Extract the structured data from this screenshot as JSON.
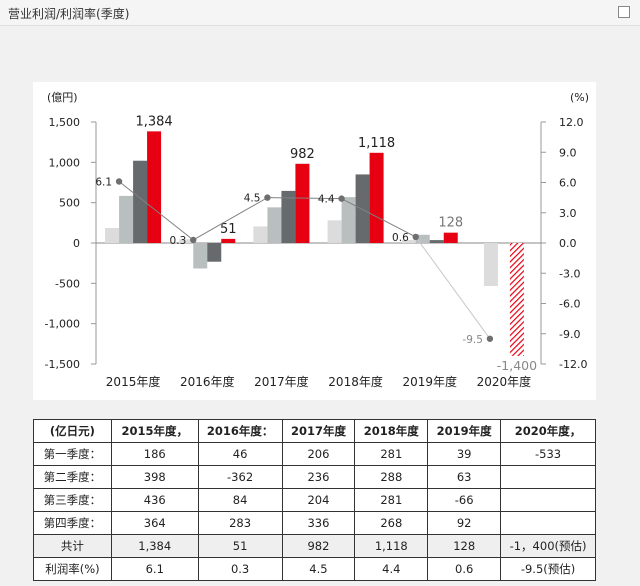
{
  "header": {
    "title": "营业利润/利润率(季度)"
  },
  "chart_data": {
    "type": "bar",
    "ylabel_left": "(億円)",
    "ylabel_right": "(%)",
    "categories": [
      "2015年度",
      "2016年度",
      "2017年度",
      "2018年度",
      "2019年度",
      "2020年度"
    ],
    "ylim_left": [
      -1500,
      1500
    ],
    "yticks_left": [
      1500,
      1000,
      500,
      0,
      -500,
      -1000,
      -1500
    ],
    "yticklabels_left": [
      "1,500",
      "1,000",
      "500",
      "0",
      "-500",
      "-1,000",
      "-1,500"
    ],
    "ylim_right": [
      -12,
      12
    ],
    "yticklabels_right": [
      "12.0",
      "9.0",
      "6.0",
      "3.0",
      "0.0",
      "-3.0",
      "-6.0",
      "-9.0",
      "-12.0"
    ],
    "series": [
      {
        "values": [
          186,
          46,
          206,
          281,
          39,
          -533
        ],
        "color": "#dcdcdc"
      },
      {
        "values": [
          584,
          -316,
          442,
          569,
          102,
          null
        ],
        "color": "#b9bfbf"
      },
      {
        "values": [
          1020,
          -232,
          646,
          850,
          36,
          null
        ],
        "color": "#666a6d"
      },
      {
        "values": [
          1384,
          51,
          982,
          1118,
          128,
          -1400
        ],
        "color": "#e60012",
        "labels": [
          "1,384",
          "51",
          "982",
          "1,118",
          "128",
          "-1,400"
        ]
      }
    ],
    "line": {
      "values": [
        6.1,
        0.3,
        4.5,
        4.4,
        0.6,
        -9.5
      ],
      "labels": [
        "6.1",
        "0.3",
        "4.5",
        "4.4",
        "0.6",
        "-9.5"
      ],
      "color": "#808080"
    },
    "last_total_hatched": true
  },
  "table": {
    "headers": [
      "(亿日元)",
      "2015年度，",
      "2016年度：",
      "2017年度",
      "2018年度",
      "2019年度",
      "2020年度，"
    ],
    "rows": [
      [
        "第一季度：",
        "186",
        "46",
        "206",
        "281",
        "39",
        "-533"
      ],
      [
        "第二季度：",
        "398",
        "-362",
        "236",
        "288",
        "63",
        ""
      ],
      [
        "第三季度：",
        "436",
        "84",
        "204",
        "281",
        "-66",
        ""
      ],
      [
        "第四季度：",
        "364",
        "283",
        "336",
        "268",
        "92",
        ""
      ]
    ],
    "total": [
      "共计",
      "1,384",
      "51",
      "982",
      "1,118",
      "128",
      "-1，400(预估)"
    ],
    "margin": [
      "利润率(%)",
      "6.1",
      "0.3",
      "4.5",
      "4.4",
      "0.6",
      "-9.5(预估)"
    ]
  }
}
